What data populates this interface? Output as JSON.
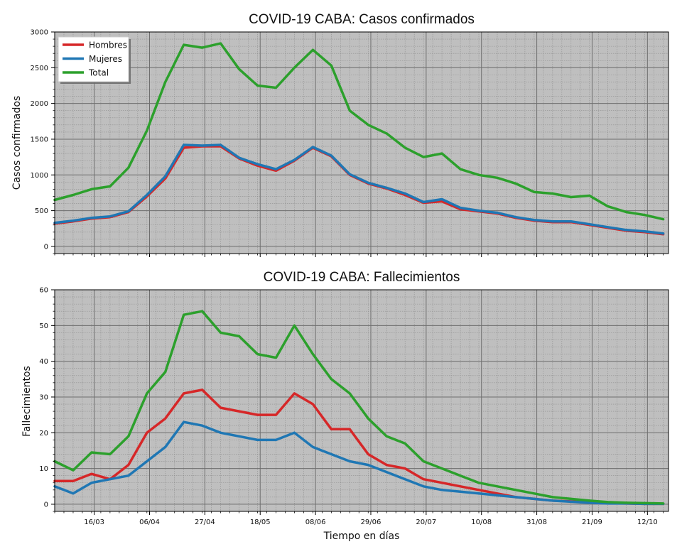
{
  "chart_data": [
    {
      "type": "line",
      "title": "COVID-19 CABA: Casos confirmados",
      "xlabel": "",
      "ylabel": "Casos confirmados",
      "ylim": [
        -100,
        3000
      ],
      "yticks": [
        0,
        500,
        1000,
        1500,
        2000,
        2500,
        3000
      ],
      "xlim": [
        "2020-03-01",
        "2020-10-20"
      ],
      "xticks": [
        "16/03",
        "06/04",
        "27/04",
        "18/05",
        "08/06",
        "29/06",
        "20/07",
        "10/08",
        "31/08",
        "21/09",
        "12/10"
      ],
      "grid": true,
      "legend": "top-left",
      "x": [
        "2020-03-01",
        "2020-03-08",
        "2020-03-15",
        "2020-03-22",
        "2020-03-29",
        "2020-04-05",
        "2020-04-12",
        "2020-04-19",
        "2020-04-26",
        "2020-05-03",
        "2020-05-10",
        "2020-05-17",
        "2020-05-24",
        "2020-05-31",
        "2020-06-07",
        "2020-06-14",
        "2020-06-21",
        "2020-06-28",
        "2020-07-05",
        "2020-07-12",
        "2020-07-19",
        "2020-07-26",
        "2020-08-02",
        "2020-08-09",
        "2020-08-16",
        "2020-08-23",
        "2020-08-30",
        "2020-09-06",
        "2020-09-13",
        "2020-09-20",
        "2020-09-27",
        "2020-10-04",
        "2020-10-11",
        "2020-10-18"
      ],
      "series": [
        {
          "name": "Hombres",
          "color": "#d62728",
          "values": [
            320,
            350,
            390,
            410,
            480,
            700,
            950,
            1380,
            1400,
            1400,
            1230,
            1130,
            1060,
            1200,
            1380,
            1260,
            1000,
            880,
            810,
            720,
            610,
            630,
            520,
            490,
            460,
            400,
            360,
            340,
            340,
            300,
            260,
            220,
            200,
            170
          ]
        },
        {
          "name": "Mujeres",
          "color": "#1f77b4",
          "values": [
            330,
            360,
            400,
            420,
            490,
            720,
            980,
            1420,
            1410,
            1420,
            1240,
            1150,
            1080,
            1210,
            1390,
            1270,
            1010,
            890,
            820,
            740,
            620,
            660,
            540,
            500,
            470,
            410,
            370,
            350,
            350,
            310,
            270,
            230,
            210,
            180
          ]
        },
        {
          "name": "Total",
          "color": "#2ca02c",
          "values": [
            650,
            720,
            800,
            840,
            1100,
            1620,
            2300,
            2820,
            2780,
            2840,
            2480,
            2250,
            2220,
            2500,
            2750,
            2530,
            1900,
            1700,
            1580,
            1380,
            1250,
            1300,
            1080,
            1000,
            960,
            880,
            760,
            740,
            690,
            710,
            560,
            480,
            440,
            380
          ]
        }
      ]
    },
    {
      "type": "line",
      "title": "COVID-19 CABA: Fallecimientos",
      "xlabel": "Tiempo en días",
      "ylabel": "Fallecimientos",
      "ylim": [
        -2,
        60
      ],
      "yticks": [
        0,
        10,
        20,
        30,
        40,
        50,
        60
      ],
      "xlim": [
        "2020-03-01",
        "2020-10-20"
      ],
      "xticks": [
        "16/03",
        "06/04",
        "27/04",
        "18/05",
        "08/06",
        "29/06",
        "20/07",
        "10/08",
        "31/08",
        "21/09",
        "12/10"
      ],
      "grid": true,
      "x": [
        "2020-03-01",
        "2020-03-08",
        "2020-03-15",
        "2020-03-22",
        "2020-03-29",
        "2020-04-05",
        "2020-04-12",
        "2020-04-19",
        "2020-04-26",
        "2020-05-03",
        "2020-05-10",
        "2020-05-17",
        "2020-05-24",
        "2020-05-31",
        "2020-06-07",
        "2020-06-14",
        "2020-06-21",
        "2020-06-28",
        "2020-07-05",
        "2020-07-12",
        "2020-07-19",
        "2020-07-26",
        "2020-08-02",
        "2020-08-09",
        "2020-08-16",
        "2020-08-23",
        "2020-08-30",
        "2020-09-06",
        "2020-09-13",
        "2020-09-20",
        "2020-09-27",
        "2020-10-04",
        "2020-10-11",
        "2020-10-18"
      ],
      "series": [
        {
          "name": "Hombres",
          "color": "#d62728",
          "values": [
            6.5,
            6.5,
            8.5,
            7,
            11,
            20,
            24,
            31,
            32,
            27,
            26,
            25,
            25,
            31,
            28,
            21,
            21,
            14,
            11,
            10,
            7,
            6,
            5,
            4,
            3,
            2,
            1.5,
            1,
            0.8,
            0.5,
            0.3,
            0.2,
            0.1,
            0.1
          ]
        },
        {
          "name": "Mujeres",
          "color": "#1f77b4",
          "values": [
            5,
            3,
            6,
            7,
            8,
            12,
            16,
            23,
            22,
            20,
            19,
            18,
            18,
            20,
            16,
            14,
            12,
            11,
            9,
            7,
            5,
            4,
            3.5,
            3,
            2.5,
            2,
            1.5,
            1,
            0.7,
            0.4,
            0.2,
            0.2,
            0.1,
            0.1
          ]
        },
        {
          "name": "Total",
          "color": "#2ca02c",
          "values": [
            12,
            9.5,
            14.5,
            14,
            19,
            31,
            37,
            53,
            54,
            48,
            47,
            42,
            41,
            50,
            42,
            35,
            31,
            24,
            19,
            17,
            12,
            10,
            8,
            6,
            5,
            4,
            3,
            2,
            1.5,
            1,
            0.6,
            0.4,
            0.3,
            0.2
          ]
        }
      ]
    }
  ]
}
